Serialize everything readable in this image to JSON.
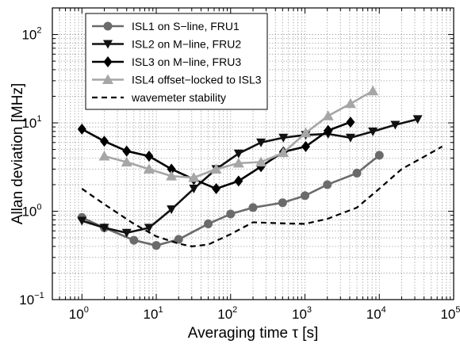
{
  "chart_data": {
    "type": "line",
    "xscale": "log",
    "yscale": "log",
    "xlim": [
      0.4,
      100000
    ],
    "ylim": [
      0.1,
      200
    ],
    "grid": true,
    "legend_position": "top-left",
    "xlabel": "Averaging time  τ [s]",
    "ylabel": "Allan deviation [MHz]",
    "xticks": [
      {
        "value": 1,
        "base": "10",
        "exp": "0"
      },
      {
        "value": 10,
        "base": "10",
        "exp": "1"
      },
      {
        "value": 100,
        "base": "10",
        "exp": "2"
      },
      {
        "value": 1000,
        "base": "10",
        "exp": "3"
      },
      {
        "value": 10000,
        "base": "10",
        "exp": "4"
      },
      {
        "value": 100000,
        "base": "10",
        "exp": "5"
      }
    ],
    "yticks": [
      {
        "value": 0.1,
        "base": "10",
        "exp": "−1"
      },
      {
        "value": 1,
        "base": "10",
        "exp": "0"
      },
      {
        "value": 10,
        "base": "10",
        "exp": "1"
      },
      {
        "value": 100,
        "base": "10",
        "exp": "2"
      }
    ],
    "series": [
      {
        "name": "ISL1 on S−line, FRU1",
        "marker": "circle",
        "color": "#6b6b6b",
        "x": [
          1,
          2,
          5,
          10,
          20,
          50,
          100,
          200,
          500,
          1000,
          2000,
          5000,
          10000
        ],
        "y": [
          0.85,
          0.65,
          0.47,
          0.41,
          0.48,
          0.72,
          0.93,
          1.1,
          1.25,
          1.5,
          2.0,
          2.7,
          4.3
        ]
      },
      {
        "name": "ISL2 on M−line, FRU2",
        "marker": "triangle-down",
        "color": "#111111",
        "x": [
          1,
          2,
          4,
          8,
          16,
          32,
          64,
          128,
          256,
          512,
          1024,
          2048,
          4096,
          8192,
          16384,
          32768
        ],
        "y": [
          0.78,
          0.65,
          0.57,
          0.65,
          1.05,
          1.8,
          3.0,
          4.5,
          6.0,
          6.8,
          7.3,
          7.5,
          6.8,
          8.0,
          9.5,
          11.0
        ]
      },
      {
        "name": "ISL3 on M−line, FRU3",
        "marker": "diamond",
        "color": "#000000",
        "x": [
          1,
          2,
          4,
          8,
          16,
          32,
          64,
          128,
          256,
          512,
          1024,
          2048,
          4096
        ],
        "y": [
          8.5,
          6.2,
          4.8,
          4.2,
          3.0,
          2.3,
          1.8,
          2.2,
          3.2,
          4.7,
          5.4,
          8.2,
          10.2
        ]
      },
      {
        "name": "ISL4 offset−locked to ISL3",
        "marker": "triangle-up",
        "color": "#a6a6a6",
        "x": [
          2,
          4,
          8,
          16,
          32,
          64,
          128,
          256,
          512,
          1024,
          2048,
          4096,
          8192
        ],
        "y": [
          4.2,
          3.6,
          3.0,
          2.5,
          2.4,
          3.0,
          3.5,
          3.6,
          4.6,
          7.7,
          12.0,
          16.5,
          23.0
        ]
      },
      {
        "name": "wavemeter stability",
        "marker": "none",
        "line": "dashed",
        "color": "#000000",
        "x": [
          1,
          2,
          5,
          10,
          20,
          30,
          50,
          100,
          200,
          500,
          1000,
          2000,
          5000,
          10000,
          20000,
          50000,
          70000
        ],
        "y": [
          1.8,
          1.2,
          0.72,
          0.52,
          0.43,
          0.4,
          0.42,
          0.55,
          0.75,
          0.73,
          0.72,
          0.82,
          1.1,
          1.8,
          3.0,
          4.6,
          5.4
        ]
      }
    ]
  }
}
